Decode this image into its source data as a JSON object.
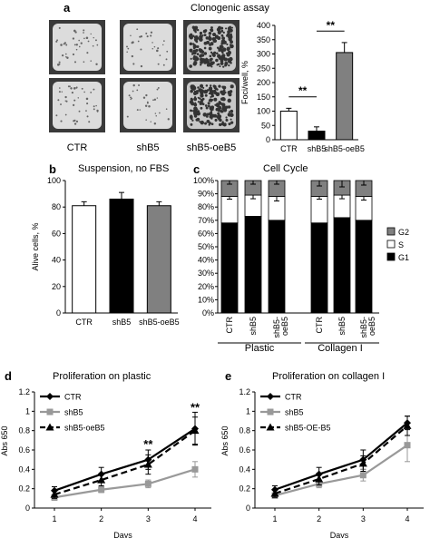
{
  "panels": {
    "a": {
      "label": "a",
      "title": "Clonogenic assay",
      "photo_labels": [
        "CTR",
        "shB5",
        "shB5-oeB5"
      ]
    },
    "b": {
      "label": "b",
      "title": "Suspension, no FBS"
    },
    "c": {
      "label": "c",
      "title": "Cell Cycle",
      "group_labels": [
        "Plastic",
        "Collagen I"
      ]
    },
    "d": {
      "label": "d",
      "title": "Proliferation on plastic"
    },
    "e": {
      "label": "e",
      "title": "Proliferation on collagen I"
    }
  },
  "chart_data": [
    {
      "id": "a-bar",
      "type": "bar",
      "categories": [
        "CTR",
        "shB5",
        "shB5-oeB5"
      ],
      "values": [
        100,
        30,
        305
      ],
      "errors": [
        10,
        15,
        35
      ],
      "colors": [
        "#ffffff",
        "#000000",
        "#808080"
      ],
      "ylabel": "Foci/well, %",
      "ylim": [
        0,
        400
      ],
      "yticks": [
        0,
        50,
        100,
        150,
        200,
        250,
        300,
        350,
        400
      ],
      "annotations": [
        "**",
        "**"
      ]
    },
    {
      "id": "b-bar",
      "type": "bar",
      "categories": [
        "CTR",
        "shB5",
        "shB5-oeB5"
      ],
      "values": [
        81,
        86,
        81
      ],
      "errors": [
        3,
        5,
        3
      ],
      "colors": [
        "#ffffff",
        "#000000",
        "#808080"
      ],
      "ylabel": "Alive cells, %",
      "ylim": [
        0,
        100
      ],
      "yticks": [
        0,
        20,
        40,
        60,
        80,
        100
      ]
    },
    {
      "id": "c-stacked",
      "type": "bar",
      "stacked": true,
      "categories": [
        "CTR",
        "shB5",
        "shB5-oeB5",
        "CTR",
        "shB5",
        "shB5-oeB5"
      ],
      "tick_labels": [
        [
          "CTR"
        ],
        [
          "shB5"
        ],
        [
          "shB5-",
          "oeB5"
        ],
        [
          "CTR"
        ],
        [
          "shB5"
        ],
        [
          "shB5-",
          "oeB5"
        ]
      ],
      "series": [
        {
          "name": "G1",
          "values": [
            68,
            73,
            70,
            68,
            72,
            70
          ],
          "color": "#000000"
        },
        {
          "name": "S",
          "values": [
            20,
            16,
            18,
            20,
            17,
            18
          ],
          "color": "#ffffff"
        },
        {
          "name": "G2",
          "values": [
            12,
            11,
            12,
            12,
            11,
            12
          ],
          "color": "#808080"
        }
      ],
      "ylim": [
        0,
        100
      ],
      "yticks": [
        "0%",
        "10%",
        "20%",
        "30%",
        "40%",
        "50%",
        "60%",
        "70%",
        "80%",
        "90%",
        "100%"
      ],
      "legend": [
        "G2",
        "S",
        "G1"
      ]
    },
    {
      "id": "d-line",
      "type": "line",
      "x": [
        1,
        2,
        3,
        4
      ],
      "xlabel": "Days",
      "ylabel": "Abs 650",
      "ylim": [
        0,
        1.2
      ],
      "yticks": [
        "0",
        "0.2",
        "0.4",
        "0.6",
        "0.8",
        "1",
        "1.2"
      ],
      "series": [
        {
          "name": "CTR",
          "values": [
            0.18,
            0.35,
            0.5,
            0.82
          ],
          "errors": [
            0.04,
            0.07,
            0.1,
            0.17
          ],
          "color": "#000000",
          "marker": "diamond",
          "dash": false
        },
        {
          "name": "shB5",
          "values": [
            0.11,
            0.19,
            0.25,
            0.4
          ],
          "errors": [
            0.03,
            0.03,
            0.04,
            0.08
          ],
          "color": "#999999",
          "marker": "square",
          "dash": false
        },
        {
          "name": "shB5-oeB5",
          "values": [
            0.14,
            0.29,
            0.45,
            0.8
          ],
          "errors": [
            0.04,
            0.06,
            0.1,
            0.14
          ],
          "color": "#000000",
          "marker": "triangle",
          "dash": true
        }
      ],
      "annotations": [
        {
          "x": 3,
          "text": "**"
        },
        {
          "x": 4,
          "text": "**"
        }
      ]
    },
    {
      "id": "e-line",
      "type": "line",
      "x": [
        1,
        2,
        3,
        4
      ],
      "xlabel": "Days",
      "ylabel": "Abs 650",
      "ylim": [
        0,
        1.2
      ],
      "yticks": [
        "0",
        "0.2",
        "0.4",
        "0.6",
        "0.8",
        "1",
        "1.2"
      ],
      "series": [
        {
          "name": "CTR",
          "values": [
            0.19,
            0.35,
            0.5,
            0.88
          ],
          "errors": [
            0.04,
            0.07,
            0.1,
            0.07
          ],
          "color": "#000000",
          "marker": "diamond",
          "dash": false
        },
        {
          "name": "shB5",
          "values": [
            0.13,
            0.25,
            0.34,
            0.65
          ],
          "errors": [
            0.03,
            0.04,
            0.06,
            0.17
          ],
          "color": "#999999",
          "marker": "square",
          "dash": false
        },
        {
          "name": "shB5-OE-B5",
          "values": [
            0.15,
            0.3,
            0.46,
            0.85
          ],
          "errors": [
            0.04,
            0.06,
            0.08,
            0.1
          ],
          "color": "#000000",
          "marker": "triangle",
          "dash": true
        }
      ]
    }
  ]
}
